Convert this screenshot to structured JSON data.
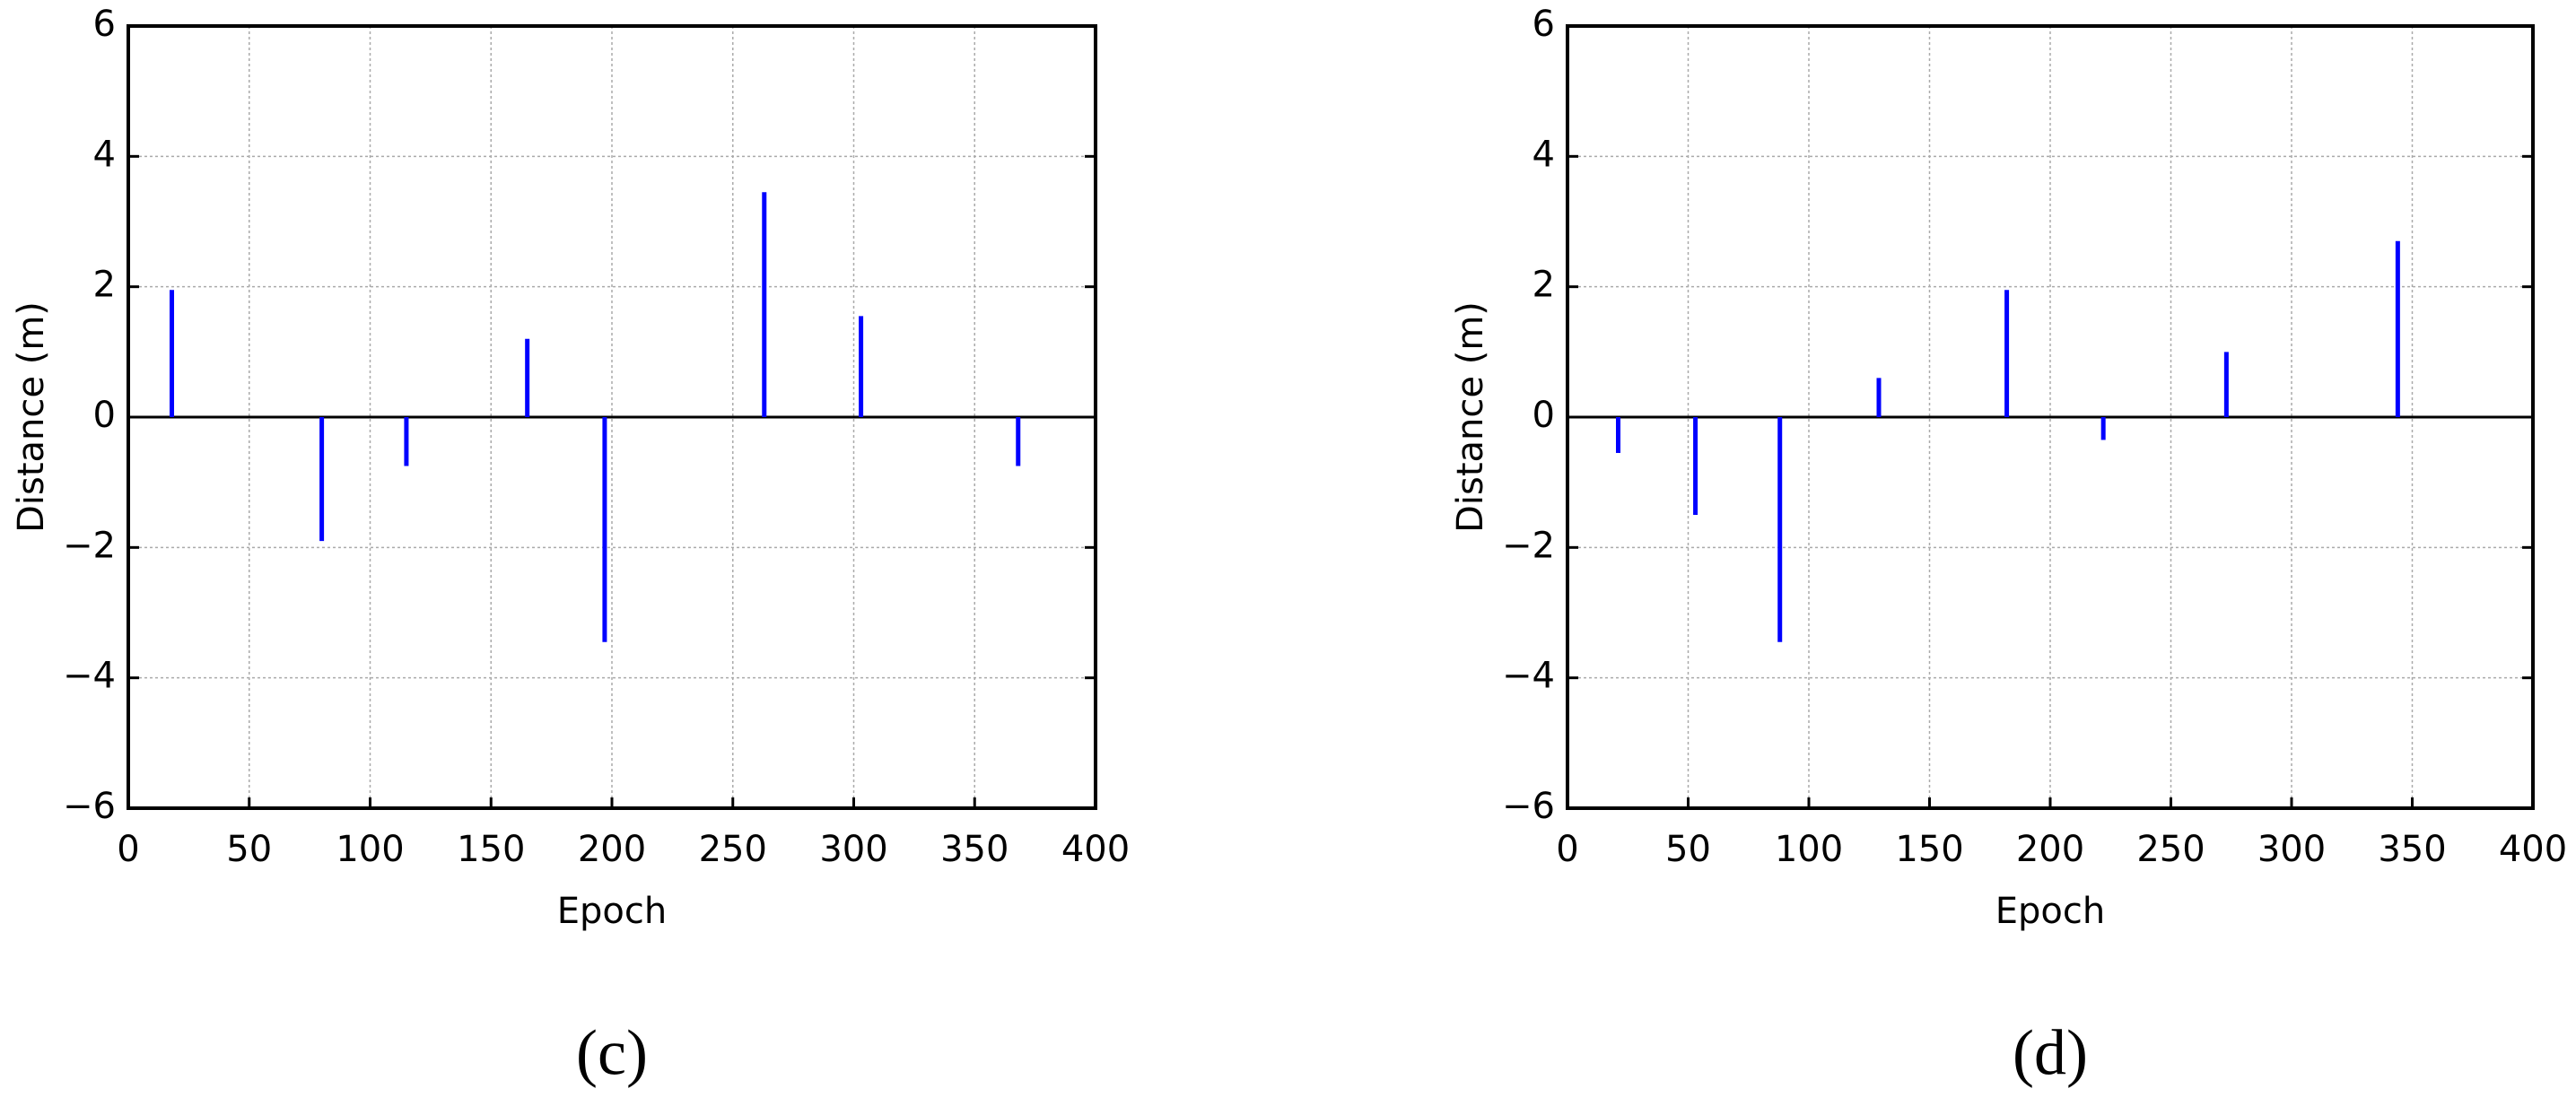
{
  "chart_data": [
    {
      "type": "stem",
      "caption": "(c)",
      "xlabel": "Epoch",
      "ylabel": "Distance (m)",
      "color": "#0000ff",
      "grid": true,
      "x": [
        18,
        80,
        115,
        165,
        197,
        263,
        303,
        368
      ],
      "values": [
        1.95,
        -1.9,
        -0.75,
        1.2,
        -3.45,
        3.45,
        1.55,
        -0.75
      ],
      "xlim": [
        0,
        400
      ],
      "xticks": [
        0,
        50,
        100,
        150,
        200,
        250,
        300,
        350,
        400
      ],
      "ylim": [
        -6,
        6
      ],
      "yticks": [
        {
          "value": -6,
          "label": "−6"
        },
        {
          "value": -4,
          "label": "−4"
        },
        {
          "value": -2,
          "label": "−2"
        },
        0,
        2,
        4,
        6
      ]
    },
    {
      "type": "stem",
      "caption": "(d)",
      "xlabel": "Epoch",
      "ylabel": "Distance (m)",
      "color": "#0000ff",
      "grid": true,
      "x": [
        21,
        53,
        88,
        129,
        182,
        222,
        273,
        344
      ],
      "values": [
        -0.55,
        -1.5,
        -3.45,
        0.6,
        1.95,
        -0.35,
        1.0,
        2.7
      ],
      "xlim": [
        0,
        400
      ],
      "xticks": [
        0,
        50,
        100,
        150,
        200,
        250,
        300,
        350,
        400
      ],
      "ylim": [
        -6,
        6
      ],
      "yticks": [
        {
          "value": -6,
          "label": "−6"
        },
        {
          "value": -4,
          "label": "−4"
        },
        {
          "value": -2,
          "label": "−2"
        },
        0,
        2,
        4,
        6
      ]
    }
  ]
}
